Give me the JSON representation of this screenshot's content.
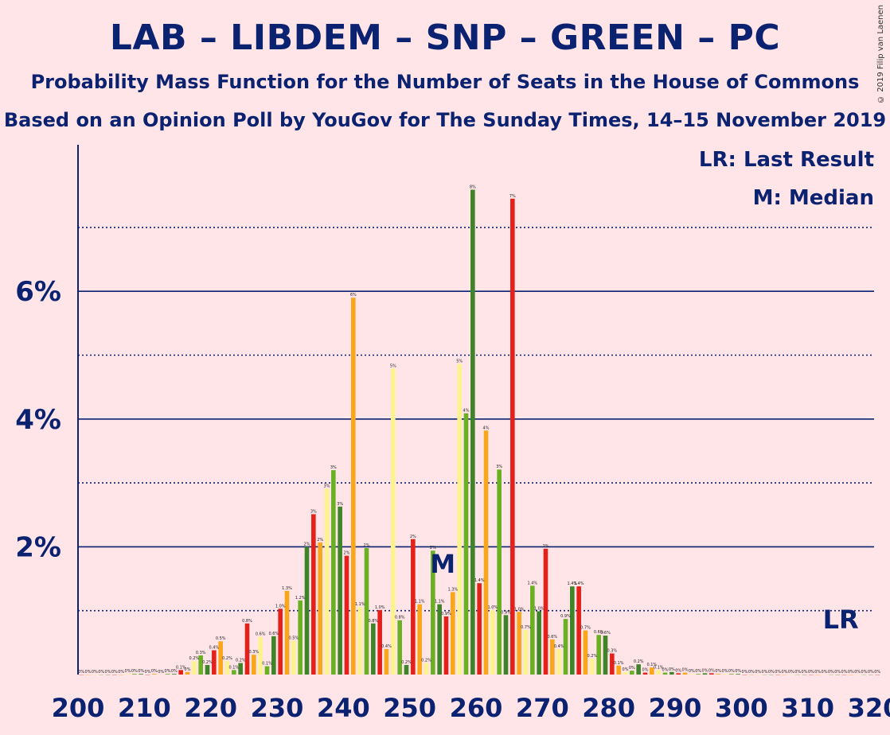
{
  "title": "LAB – LIBDEM – SNP – GREEN – PC",
  "subtitle": "Probability Mass Function for the Number of Seats in the House of Commons",
  "subtitle2": "Based on an Opinion Poll by YouGov for The Sunday Times, 14–15 November 2019",
  "copyright": "© 2019 Filip van Laenen",
  "legend": {
    "lr": "LR: Last Result",
    "m": "M: Median",
    "lr_marker": "LR",
    "m_marker": "M"
  },
  "colors": {
    "background": "#FFE4E8",
    "text": "#0B2270",
    "cycle": [
      "#E4201A",
      "#FAA61A",
      "#FDF38E",
      "#6AB023",
      "#3F8428"
    ]
  },
  "chart_data": {
    "type": "bar",
    "x": [
      200,
      201,
      202,
      203,
      204,
      205,
      206,
      207,
      208,
      209,
      210,
      211,
      212,
      213,
      214,
      215,
      216,
      217,
      218,
      219,
      220,
      221,
      222,
      223,
      224,
      225,
      226,
      227,
      228,
      229,
      230,
      231,
      232,
      233,
      234,
      235,
      236,
      237,
      238,
      239,
      240,
      241,
      242,
      243,
      244,
      245,
      246,
      247,
      248,
      249,
      250,
      251,
      252,
      253,
      254,
      255,
      256,
      257,
      258,
      259,
      260,
      261,
      262,
      263,
      264,
      265,
      266,
      267,
      268,
      269,
      270,
      271,
      272,
      273,
      274,
      275,
      276,
      277,
      278,
      279,
      280,
      281,
      282,
      283,
      284,
      285,
      286,
      287,
      288,
      289,
      290,
      291,
      292,
      293,
      294,
      295,
      296,
      297,
      298,
      299,
      300,
      301,
      302,
      303,
      304,
      305,
      306,
      307,
      308,
      309,
      310,
      311,
      312,
      313,
      314,
      315,
      316,
      317,
      318,
      319,
      320
    ],
    "values": [
      0,
      0,
      0,
      0,
      0,
      0,
      0,
      0.01,
      0.01,
      0.01,
      0,
      0.01,
      0,
      0.01,
      0.01,
      0.07,
      0.04,
      0.21,
      0.3,
      0.15,
      0.38,
      0.52,
      0.21,
      0.07,
      0.18,
      0.8,
      0.31,
      0.59,
      0.13,
      0.6,
      1.03,
      1.31,
      0.53,
      1.16,
      2,
      2.51,
      2.07,
      2.91,
      3.2,
      2.63,
      1.86,
      5.9,
      1.06,
      1.98,
      0.8,
      1.01,
      0.4,
      4.79,
      0.85,
      0.15,
      2.12,
      1.1,
      0.18,
      1.94,
      1.1,
      0.91,
      1.29,
      4.86,
      4.09,
      7.59,
      1.43,
      3.82,
      1.01,
      3.21,
      0.93,
      7.45,
      0.98,
      0.7,
      1.39,
      0.99,
      1.97,
      0.55,
      0.4,
      0.87,
      1.38,
      1.38,
      0.69,
      0.25,
      0.62,
      0.61,
      0.33,
      0.14,
      0.04,
      0.06,
      0.16,
      0.03,
      0.11,
      0.07,
      0.03,
      0.04,
      0.02,
      0.03,
      0.01,
      0.01,
      0.02,
      0.02,
      0.01,
      0.01,
      0.01,
      0.01,
      0,
      0,
      0,
      0,
      0,
      0,
      0,
      0,
      0,
      0,
      0,
      0,
      0,
      0,
      0,
      0,
      0,
      0,
      0,
      0,
      0
    ],
    "bar_labels": [
      "0%",
      "0%",
      "0%",
      "0%",
      "0%",
      "0%",
      "0%",
      "0%",
      "0%",
      "0%",
      "0%",
      "0%",
      "0%",
      "0%",
      "0%",
      "0.1%",
      "0%",
      "0.2%",
      "0.3%",
      "0.2%",
      "0.4%",
      "0.5%",
      "0.2%",
      "0.1%",
      "0.2%",
      "0.8%",
      "0.3%",
      "0.6%",
      "0.1%",
      "0.6%",
      "1.0%",
      "1.3%",
      "0.5%",
      "1.2%",
      "2%",
      "3%",
      "2%",
      "3%",
      "3%",
      "3%",
      "2%",
      "6%",
      "1.1%",
      "2%",
      "0.8%",
      "1.0%",
      "0.4%",
      "5%",
      "0.8%",
      "0.2%",
      "2%",
      "1.1%",
      "0.2%",
      "2%",
      "1.1%",
      "0.9%",
      "1.3%",
      "5%",
      "4%",
      "8%",
      "1.4%",
      "4%",
      "1.0%",
      "3%",
      "0.9%",
      "7%",
      "1.0%",
      "0.7%",
      "1.4%",
      "1.0%",
      "2%",
      "0.6%",
      "0.4%",
      "0.9%",
      "1.4%",
      "1.4%",
      "0.7%",
      "0.2%",
      "0.6%",
      "0.6%",
      "0.3%",
      "0.1%",
      "0%",
      "0%",
      "0.2%",
      "0%",
      "0.1%",
      "0.1%",
      "0%",
      "0%",
      "0%",
      "0%",
      "0%",
      "0%",
      "0%",
      "0%",
      "0%",
      "0%",
      "0%",
      "0%",
      "0%",
      "0%",
      "0%",
      "0%",
      "0%",
      "0%",
      "0%",
      "0%",
      "0%",
      "0%",
      "0%",
      "0%",
      "0%",
      "0%",
      "0%",
      "0%",
      "0%",
      "0%",
      "0%",
      "0%",
      "0%"
    ],
    "y_ticks": [
      2,
      4,
      6
    ],
    "y_tick_labels": [
      "2%",
      "4%",
      "6%"
    ],
    "x_ticks": [
      200,
      210,
      220,
      230,
      240,
      250,
      260,
      270,
      280,
      290,
      300,
      310,
      320
    ],
    "x_tick_labels": [
      "200",
      "210",
      "220",
      "230",
      "240",
      "250",
      "260",
      "270",
      "280",
      "290",
      "300",
      "310",
      "320"
    ],
    "ylim": [
      0,
      8.2
    ],
    "xlim": [
      200,
      320
    ],
    "solid_grid": [
      2,
      4,
      6
    ],
    "dotted_grid": [
      1,
      3,
      5,
      7
    ],
    "median": 254,
    "last_result": 314,
    "title": "LAB – LIBDEM – SNP – GREEN – PC",
    "xlabel": "",
    "ylabel": ""
  }
}
